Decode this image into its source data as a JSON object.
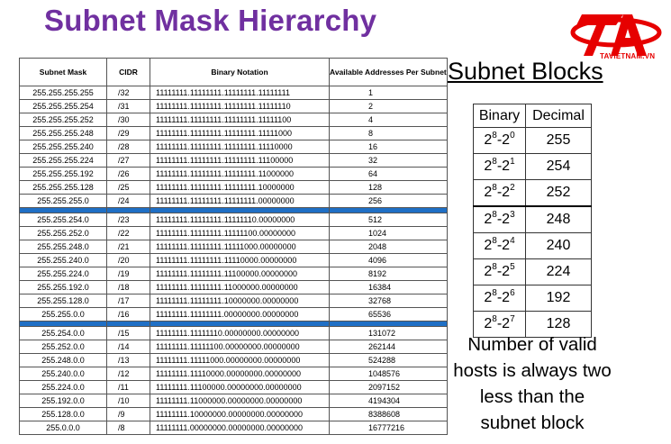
{
  "title": "Subnet Mask Hierarchy",
  "logo": {
    "text": "TAVIETNAM.VN",
    "color": "#e60000"
  },
  "mask_table": {
    "headers": {
      "mask": "Subnet Mask",
      "cidr": "CIDR",
      "binary": "Binary Notation",
      "available": "Available Addresses Per Subnet"
    },
    "separator_color": "#1f6fc5",
    "groups": [
      [
        {
          "mask": "255.255.255.255",
          "cidr": "/32",
          "binary": "11111111.11111111.11111111.11111111",
          "available": "1"
        },
        {
          "mask": "255.255.255.254",
          "cidr": "/31",
          "binary": "11111111.11111111.11111111.11111110",
          "available": "2"
        },
        {
          "mask": "255.255.255.252",
          "cidr": "/30",
          "binary": "11111111.11111111.11111111.11111100",
          "available": "4"
        },
        {
          "mask": "255.255.255.248",
          "cidr": "/29",
          "binary": "11111111.11111111.11111111.11111000",
          "available": "8"
        },
        {
          "mask": "255.255.255.240",
          "cidr": "/28",
          "binary": "11111111.11111111.11111111.11110000",
          "available": "16"
        },
        {
          "mask": "255.255.255.224",
          "cidr": "/27",
          "binary": "11111111.11111111.11111111.11100000",
          "available": "32"
        },
        {
          "mask": "255.255.255.192",
          "cidr": "/26",
          "binary": "11111111.11111111.11111111.11000000",
          "available": "64"
        },
        {
          "mask": "255.255.255.128",
          "cidr": "/25",
          "binary": "11111111.11111111.11111111.10000000",
          "available": "128"
        },
        {
          "mask": "255.255.255.0",
          "cidr": "/24",
          "binary": "11111111.11111111.11111111.00000000",
          "available": "256"
        }
      ],
      [
        {
          "mask": "255.255.254.0",
          "cidr": "/23",
          "binary": "11111111.11111111.11111110.00000000",
          "available": "512"
        },
        {
          "mask": "255.255.252.0",
          "cidr": "/22",
          "binary": "11111111.11111111.11111100.00000000",
          "available": "1024"
        },
        {
          "mask": "255.255.248.0",
          "cidr": "/21",
          "binary": "11111111.11111111.11111000.00000000",
          "available": "2048"
        },
        {
          "mask": "255.255.240.0",
          "cidr": "/20",
          "binary": "11111111.11111111.11110000.00000000",
          "available": "4096"
        },
        {
          "mask": "255.255.224.0",
          "cidr": "/19",
          "binary": "11111111.11111111.11100000.00000000",
          "available": "8192"
        },
        {
          "mask": "255.255.192.0",
          "cidr": "/18",
          "binary": "11111111.11111111.11000000.00000000",
          "available": "16384"
        },
        {
          "mask": "255.255.128.0",
          "cidr": "/17",
          "binary": "11111111.11111111.10000000.00000000",
          "available": "32768"
        },
        {
          "mask": "255.255.0.0",
          "cidr": "/16",
          "binary": "11111111.11111111.00000000.00000000",
          "available": "65536"
        }
      ],
      [
        {
          "mask": "255.254.0.0",
          "cidr": "/15",
          "binary": "11111111.11111110.00000000.00000000",
          "available": "131072"
        },
        {
          "mask": "255.252.0.0",
          "cidr": "/14",
          "binary": "11111111.11111100.00000000.00000000",
          "available": "262144"
        },
        {
          "mask": "255.248.0.0",
          "cidr": "/13",
          "binary": "11111111.11111000.00000000.00000000",
          "available": "524288"
        },
        {
          "mask": "255.240.0.0",
          "cidr": "/12",
          "binary": "11111111.11110000.00000000.00000000",
          "available": "1048576"
        },
        {
          "mask": "255.224.0.0",
          "cidr": "/11",
          "binary": "11111111.11100000.00000000.00000000",
          "available": "2097152"
        },
        {
          "mask": "255.192.0.0",
          "cidr": "/10",
          "binary": "11111111.11000000.00000000.00000000",
          "available": "4194304"
        },
        {
          "mask": "255.128.0.0",
          "cidr": "/9",
          "binary": "11111111.10000000.00000000.00000000",
          "available": "8388608"
        },
        {
          "mask": "255.0.0.0",
          "cidr": "/8",
          "binary": "11111111.00000000.00000000.00000000",
          "available": "16777216"
        }
      ]
    ]
  },
  "subnet_blocks": {
    "title": "Subnet Blocks",
    "headers": {
      "binary": "Binary",
      "decimal": "Decimal"
    },
    "rows": [
      {
        "base": "2",
        "base_exp": "8",
        "minus": "-2",
        "minus_exp": "0",
        "decimal": "255"
      },
      {
        "base": "2",
        "base_exp": "8",
        "minus": "-2",
        "minus_exp": "1",
        "decimal": "254"
      },
      {
        "base": "2",
        "base_exp": "8",
        "minus": "-2",
        "minus_exp": "2",
        "decimal": "252"
      },
      {
        "base": "2",
        "base_exp": "8",
        "minus": "-2",
        "minus_exp": "3",
        "decimal": "248"
      },
      {
        "base": "2",
        "base_exp": "8",
        "minus": "-2",
        "minus_exp": "4",
        "decimal": "240"
      },
      {
        "base": "2",
        "base_exp": "8",
        "minus": "-2",
        "minus_exp": "5",
        "decimal": "224"
      },
      {
        "base": "2",
        "base_exp": "8",
        "minus": "-2",
        "minus_exp": "6",
        "decimal": "192"
      },
      {
        "base": "2",
        "base_exp": "8",
        "minus": "-2",
        "minus_exp": "7",
        "decimal": "128"
      }
    ]
  },
  "note": {
    "lines": [
      "Number of valid",
      "hosts is always two",
      "less than the",
      "subnet block"
    ]
  }
}
